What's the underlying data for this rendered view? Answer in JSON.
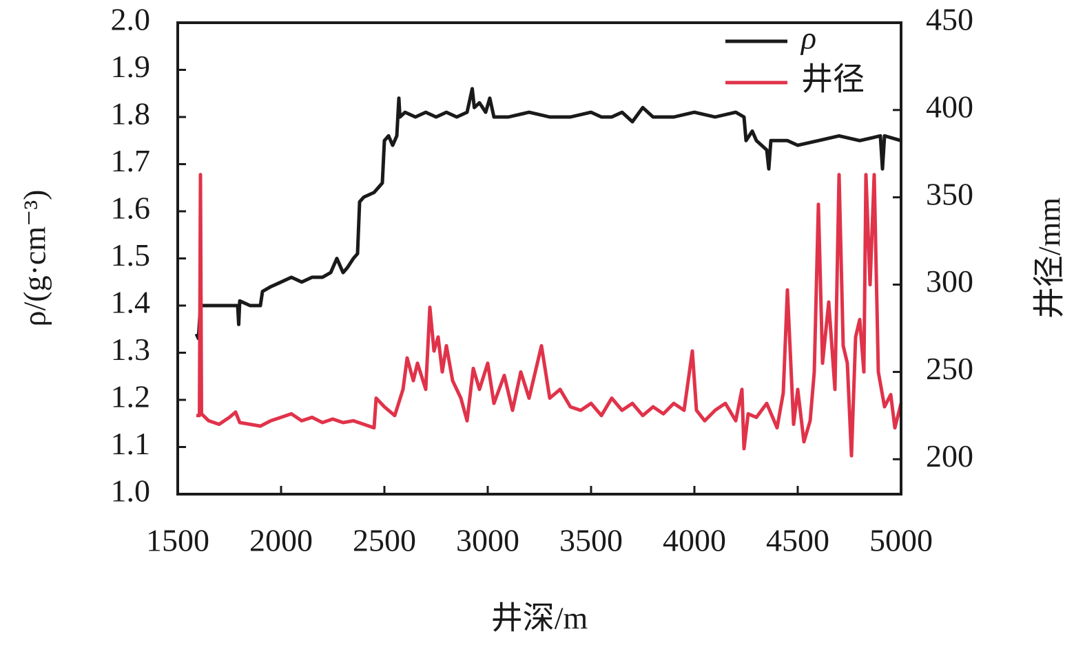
{
  "chart_data": {
    "type": "line",
    "xlabel": "井深/m",
    "ylabel": "ρ/(g·cm⁻³)",
    "y2label": "井径/mm",
    "xlim": [
      1500,
      5000
    ],
    "xticks": [
      1500,
      2000,
      2500,
      3000,
      3500,
      4000,
      4500,
      5000
    ],
    "ylim": [
      1,
      2
    ],
    "yticks": [
      {
        "value": 1,
        "label": "1.0"
      },
      1.1,
      1.2,
      1.3,
      1.4,
      1.5,
      1.6,
      1.7,
      1.8,
      1.9,
      {
        "value": 2,
        "label": "2.0"
      }
    ],
    "y2lim": [
      180,
      450
    ],
    "y2ticks": [
      200,
      250,
      300,
      350,
      400,
      450
    ],
    "legend": "upper right",
    "series": [
      {
        "name": "ρ",
        "color": "#1a1a1a",
        "x": [
          1590,
          1600,
          1610,
          1700,
          1790,
          1795,
          1800,
          1850,
          1900,
          1910,
          1950,
          2000,
          2050,
          2100,
          2150,
          2200,
          2240,
          2270,
          2300,
          2320,
          2350,
          2370,
          2380,
          2400,
          2450,
          2470,
          2490,
          2500,
          2520,
          2540,
          2560,
          2570,
          2575,
          2600,
          2650,
          2700,
          2750,
          2800,
          2850,
          2900,
          2925,
          2935,
          2960,
          2990,
          3010,
          3030,
          3100,
          3200,
          3300,
          3400,
          3500,
          3550,
          3600,
          3650,
          3700,
          3750,
          3800,
          3900,
          4000,
          4100,
          4200,
          4240,
          4250,
          4280,
          4300,
          4350,
          4360,
          4370,
          4450,
          4500,
          4600,
          4700,
          4800,
          4900,
          4910,
          4920,
          5000
        ],
        "values": [
          1.34,
          1.33,
          1.4,
          1.4,
          1.4,
          1.36,
          1.41,
          1.4,
          1.4,
          1.43,
          1.44,
          1.45,
          1.46,
          1.45,
          1.46,
          1.46,
          1.47,
          1.5,
          1.47,
          1.48,
          1.5,
          1.51,
          1.62,
          1.63,
          1.64,
          1.65,
          1.66,
          1.75,
          1.76,
          1.74,
          1.76,
          1.84,
          1.8,
          1.81,
          1.8,
          1.81,
          1.8,
          1.81,
          1.8,
          1.81,
          1.86,
          1.82,
          1.83,
          1.81,
          1.84,
          1.8,
          1.8,
          1.81,
          1.8,
          1.8,
          1.81,
          1.8,
          1.8,
          1.81,
          1.79,
          1.82,
          1.8,
          1.8,
          1.81,
          1.8,
          1.81,
          1.8,
          1.75,
          1.77,
          1.75,
          1.73,
          1.69,
          1.75,
          1.75,
          1.74,
          1.75,
          1.76,
          1.75,
          1.76,
          1.69,
          1.76,
          1.75
        ]
      },
      {
        "name": "井径",
        "color": "#e0334a",
        "axis": "y2",
        "x": [
          1590,
          1605,
          1610,
          1615,
          1650,
          1700,
          1750,
          1780,
          1800,
          1850,
          1900,
          1950,
          2000,
          2050,
          2100,
          2150,
          2200,
          2250,
          2300,
          2350,
          2400,
          2450,
          2460,
          2500,
          2550,
          2590,
          2610,
          2640,
          2660,
          2700,
          2720,
          2740,
          2760,
          2780,
          2800,
          2830,
          2870,
          2900,
          2930,
          2960,
          3000,
          3030,
          3080,
          3120,
          3160,
          3200,
          3260,
          3300,
          3350,
          3400,
          3450,
          3500,
          3550,
          3600,
          3650,
          3700,
          3750,
          3800,
          3850,
          3900,
          3950,
          3990,
          4010,
          4050,
          4100,
          4150,
          4200,
          4230,
          4240,
          4260,
          4300,
          4350,
          4400,
          4430,
          4450,
          4480,
          4500,
          4530,
          4560,
          4580,
          4600,
          4620,
          4650,
          4680,
          4700,
          4720,
          4740,
          4760,
          4780,
          4800,
          4820,
          4830,
          4850,
          4870,
          4890,
          4920,
          4950,
          4970,
          5000
        ],
        "values": [
          225,
          225,
          363,
          226,
          222,
          220,
          224,
          227,
          221,
          220,
          219,
          222,
          224,
          226,
          222,
          224,
          221,
          223,
          221,
          222,
          220,
          218,
          235,
          230,
          225,
          240,
          258,
          245,
          255,
          240,
          287,
          262,
          270,
          250,
          265,
          245,
          235,
          222,
          252,
          240,
          255,
          232,
          248,
          228,
          250,
          235,
          265,
          235,
          240,
          230,
          228,
          232,
          225,
          235,
          228,
          232,
          225,
          230,
          226,
          232,
          228,
          262,
          228,
          222,
          228,
          232,
          222,
          240,
          206,
          226,
          224,
          232,
          218,
          238,
          297,
          220,
          240,
          210,
          222,
          250,
          346,
          255,
          290,
          240,
          363,
          265,
          255,
          202,
          270,
          280,
          250,
          363,
          300,
          363,
          250,
          230,
          237,
          218,
          232
        ]
      }
    ]
  }
}
